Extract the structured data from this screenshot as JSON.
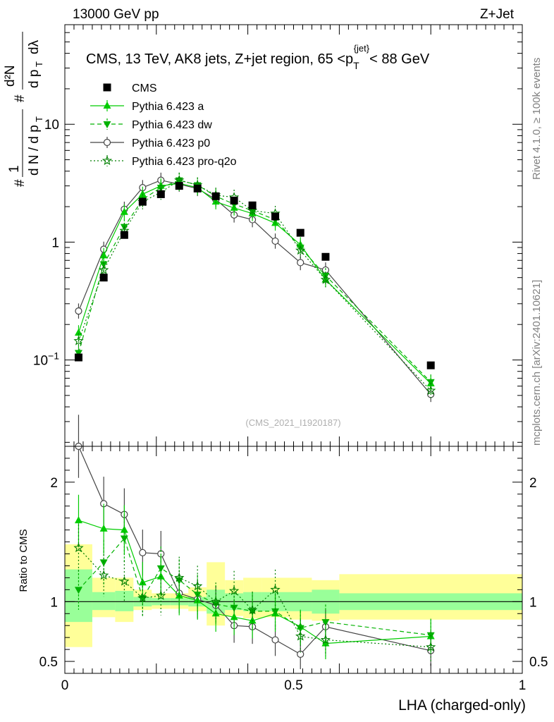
{
  "header": {
    "left": "13000 GeV pp",
    "right": "Z+Jet"
  },
  "side_labels": {
    "rivet": "Rivet 4.1.0, ≥ 100k events",
    "mcplots": "mcplots.cern.ch [arXiv:2401.10621]"
  },
  "watermark": "(CMS_2021_I1920187)",
  "colors": {
    "cms": "#000000",
    "a": "#00cc00",
    "dw": "#00b200",
    "p0": "#444444",
    "proq2o": "#007f00",
    "band_stat": "#99ff99",
    "band_tot": "#ffff99"
  },
  "chart_data": [
    {
      "type": "scatter",
      "panel": "main",
      "title": "CMS, 13 TeV, AK8 jets, Z+jet region, 65 <p_T^{jet}< 88 GeV",
      "xlabel": "LHA (charged-only)",
      "ylabel": "(1/dN/dp_T) d²N/dp_T dλ",
      "yscale": "log",
      "xlim": [
        0,
        1
      ],
      "ylim": [
        0.0185,
        70
      ],
      "y_tick_labels": [
        "10^{-1}",
        "1",
        "10"
      ],
      "y_tick_values": [
        0.1,
        1,
        10
      ],
      "bin_edges": [
        0,
        0.06,
        0.11,
        0.15,
        0.19,
        0.23,
        0.27,
        0.31,
        0.35,
        0.39,
        0.43,
        0.49,
        0.54,
        0.6,
        1.0
      ],
      "x": [
        0.03,
        0.085,
        0.13,
        0.17,
        0.21,
        0.25,
        0.29,
        0.33,
        0.37,
        0.41,
        0.46,
        0.515,
        0.57,
        0.8
      ],
      "legend": [
        {
          "key": "cms",
          "label": "CMS"
        },
        {
          "key": "a",
          "label": "Pythia 6.423 a"
        },
        {
          "key": "dw",
          "label": "Pythia 6.423 dw"
        },
        {
          "key": "p0",
          "label": "Pythia 6.423 p0"
        },
        {
          "key": "proq2o",
          "label": "Pythia 6.423 pro-q2o"
        }
      ],
      "series": [
        {
          "key": "cms",
          "name": "CMS",
          "values": [
            0.105,
            0.5,
            1.15,
            2.2,
            2.55,
            3.0,
            2.85,
            2.45,
            2.25,
            2.05,
            1.65,
            1.2,
            0.75,
            0.09
          ]
        },
        {
          "key": "a",
          "name": "Pythia 6.423 a",
          "values": [
            0.17,
            0.77,
            1.8,
            2.55,
            3.0,
            3.15,
            2.9,
            2.2,
            1.95,
            1.75,
            1.45,
            0.95,
            0.48,
            0.063
          ]
        },
        {
          "key": "dw",
          "name": "Pythia 6.423 dw",
          "values": [
            0.115,
            0.65,
            1.35,
            2.3,
            2.9,
            3.35,
            3.05,
            2.45,
            2.1,
            1.85,
            1.55,
            0.9,
            0.52,
            0.065
          ]
        },
        {
          "key": "p0",
          "name": "Pythia 6.423 p0",
          "values": [
            0.26,
            0.87,
            1.9,
            2.9,
            3.35,
            3.1,
            2.85,
            2.3,
            1.7,
            1.55,
            1.02,
            0.67,
            0.58,
            0.051
          ]
        },
        {
          "key": "proq2o",
          "name": "Pythia 6.423 pro-q2o",
          "values": [
            0.145,
            0.58,
            1.25,
            2.2,
            2.65,
            3.35,
            3.05,
            2.5,
            2.4,
            1.85,
            1.75,
            0.85,
            0.48,
            0.055
          ]
        }
      ]
    },
    {
      "type": "scatter",
      "panel": "ratio",
      "xlabel": "LHA (charged-only)",
      "ylabel": "Ratio to CMS",
      "xlim": [
        0,
        1
      ],
      "ylim": [
        0.4,
        2.3
      ],
      "x_tick_labels": [
        "0",
        "0.5",
        "1"
      ],
      "x_tick_values": [
        0,
        0.5,
        1
      ],
      "y_tick_labels": [
        "0.5",
        "1",
        "2"
      ],
      "y_tick_values": [
        0.5,
        1,
        2
      ],
      "band_stat": [
        [
          0.83,
          1.27
        ],
        [
          0.93,
          1.08
        ],
        [
          0.92,
          1.09
        ],
        [
          0.96,
          1.04
        ],
        [
          0.97,
          1.03
        ],
        [
          0.97,
          1.03
        ],
        [
          0.96,
          1.04
        ],
        [
          0.9,
          1.1
        ],
        [
          0.93,
          1.07
        ],
        [
          0.92,
          1.08
        ],
        [
          0.92,
          1.08
        ],
        [
          0.92,
          1.08
        ],
        [
          0.9,
          1.1
        ],
        [
          0.93,
          1.07
        ]
      ],
      "band_tot": [
        [
          0.62,
          1.48
        ],
        [
          0.87,
          1.2
        ],
        [
          0.83,
          1.2
        ],
        [
          0.93,
          1.1
        ],
        [
          0.94,
          1.07
        ],
        [
          0.94,
          1.07
        ],
        [
          0.92,
          1.12
        ],
        [
          0.8,
          1.33
        ],
        [
          0.88,
          1.18
        ],
        [
          0.86,
          1.2
        ],
        [
          0.87,
          1.2
        ],
        [
          0.85,
          1.2
        ],
        [
          0.84,
          1.18
        ],
        [
          0.85,
          1.23
        ]
      ],
      "series": [
        {
          "key": "a",
          "name": "Pythia 6.423 a",
          "values": [
            1.68,
            1.61,
            1.6,
            1.16,
            1.21,
            1.05,
            1.01,
            0.9,
            0.87,
            0.84,
            0.9,
            0.79,
            0.65,
            0.71
          ]
        },
        {
          "key": "dw",
          "name": "Pythia 6.423 dw",
          "values": [
            1.1,
            1.33,
            1.53,
            1.03,
            1.28,
            1.18,
            1.06,
            0.98,
            0.95,
            0.92,
            0.92,
            0.78,
            0.83,
            0.72
          ]
        },
        {
          "key": "p0",
          "name": "Pythia 6.423 p0",
          "values": [
            2.3,
            1.82,
            1.73,
            1.41,
            1.4,
            1.07,
            1.02,
            0.97,
            0.8,
            0.79,
            0.68,
            0.56,
            0.79,
            0.59
          ]
        },
        {
          "key": "proq2o",
          "name": "Pythia 6.423 pro-q2o",
          "values": [
            1.45,
            1.22,
            1.17,
            1.03,
            1.05,
            1.2,
            1.13,
            1.0,
            1.09,
            0.93,
            1.1,
            0.71,
            0.68,
            0.62
          ]
        }
      ]
    }
  ]
}
